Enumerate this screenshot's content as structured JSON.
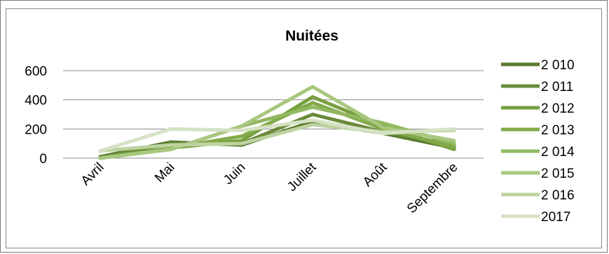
{
  "chart_data": {
    "type": "line",
    "title": "Nuitées",
    "xlabel": "",
    "ylabel": "",
    "categories": [
      "Avril",
      "Mai",
      "Juin",
      "Juillet",
      "Août",
      "Septembre"
    ],
    "ylim": [
      0,
      600
    ],
    "yticks": [
      0,
      200,
      400,
      600
    ],
    "grid": true,
    "legend_position": "right",
    "series": [
      {
        "name": "2 010",
        "color": "#5a7a30",
        "values": [
          10,
          110,
          90,
          250,
          170,
          70
        ]
      },
      {
        "name": "2 011",
        "color": "#698a38",
        "values": [
          5,
          100,
          100,
          300,
          180,
          90
        ]
      },
      {
        "name": "2 012",
        "color": "#77a040",
        "values": [
          0,
          70,
          120,
          420,
          220,
          60
        ]
      },
      {
        "name": "2 013",
        "color": "#82aa4a",
        "values": [
          0,
          70,
          150,
          380,
          200,
          80
        ]
      },
      {
        "name": "2 014",
        "color": "#93b862",
        "values": [
          0,
          60,
          220,
          350,
          240,
          100
        ]
      },
      {
        "name": "2 015",
        "color": "#a8c77e",
        "values": [
          0,
          60,
          220,
          490,
          210,
          120
        ]
      },
      {
        "name": "2 016",
        "color": "#bdd3a0",
        "values": [
          50,
          90,
          100,
          230,
          180,
          190
        ]
      },
      {
        "name": "2017",
        "color": "#d5e2c4",
        "values": [
          50,
          200,
          190,
          260,
          170,
          200
        ]
      }
    ]
  }
}
